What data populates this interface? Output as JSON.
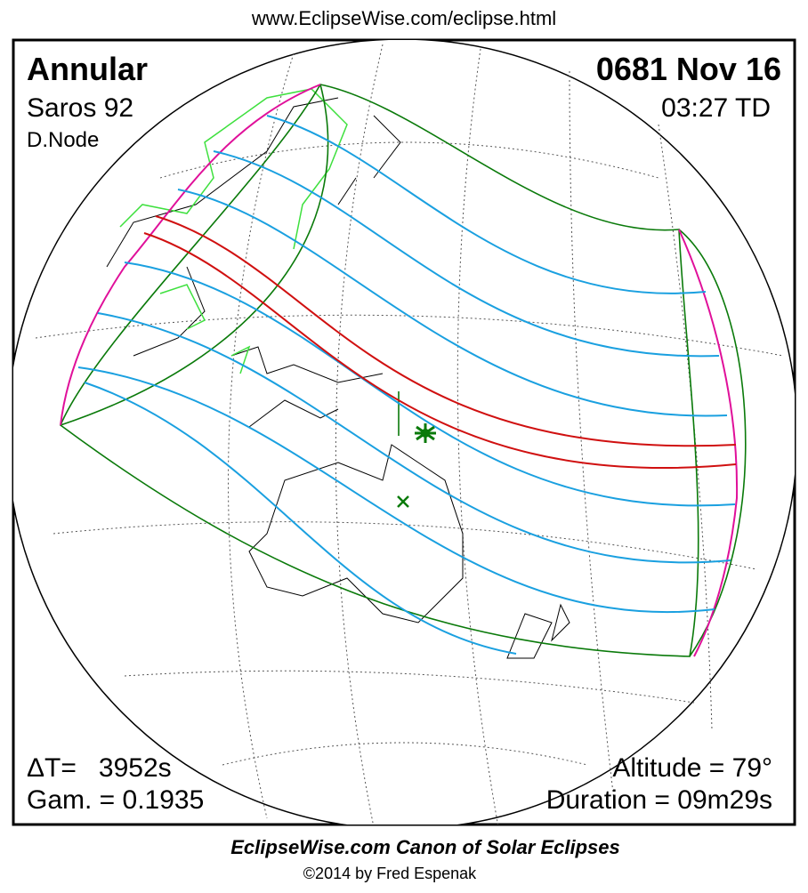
{
  "header": {
    "url": "www.EclipseWise.com/eclipse.html"
  },
  "panel": {
    "top_left": {
      "eclipse_type": "Annular",
      "saros": "Saros  92",
      "node": "D.Node"
    },
    "top_right": {
      "date": "0681 Nov 16",
      "time": "03:27 TD"
    },
    "bottom_left": {
      "delta_t": "ΔT=   3952s",
      "gamma": "Gam. = 0.1935"
    },
    "bottom_right": {
      "altitude": "Altitude = 79°",
      "duration": "Duration = 09m29s"
    }
  },
  "footer": {
    "title": "EclipseWise.com Canon of Solar Eclipses",
    "copyright": "©2014 by Fred Espenak"
  }
}
